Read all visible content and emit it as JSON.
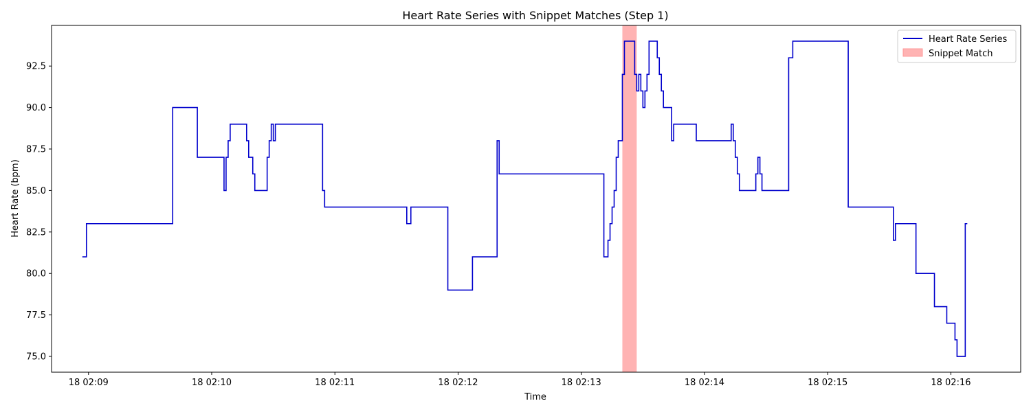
{
  "chart_data": {
    "type": "line",
    "title": "Heart Rate Series with Snippet Matches (Step 1)",
    "xlabel": "Time",
    "ylabel": "Heart Rate (bpm)",
    "xlim": [
      "02:08:42",
      "02:16:34"
    ],
    "ylim": [
      74.05,
      94.95
    ],
    "x_ticks": [
      {
        "t": "02:09:00",
        "label": "18 02:09"
      },
      {
        "t": "02:10:00",
        "label": "18 02:10"
      },
      {
        "t": "02:11:00",
        "label": "18 02:11"
      },
      {
        "t": "02:12:00",
        "label": "18 02:12"
      },
      {
        "t": "02:13:00",
        "label": "18 02:13"
      },
      {
        "t": "02:14:00",
        "label": "18 02:14"
      },
      {
        "t": "02:15:00",
        "label": "18 02:15"
      },
      {
        "t": "02:16:00",
        "label": "18 02:16"
      }
    ],
    "y_ticks": [
      {
        "v": 75.0,
        "label": "75.0"
      },
      {
        "v": 77.5,
        "label": "77.5"
      },
      {
        "v": 80.0,
        "label": "80.0"
      },
      {
        "v": 82.5,
        "label": "82.5"
      },
      {
        "v": 85.0,
        "label": "85.0"
      },
      {
        "v": 87.5,
        "label": "87.5"
      },
      {
        "v": 90.0,
        "label": "90.0"
      },
      {
        "v": 92.5,
        "label": "92.5"
      }
    ],
    "grid": false,
    "legend_position": "upper right",
    "series": [
      {
        "name": "Heart Rate Series",
        "color": "#0000cc",
        "step": "post",
        "points": [
          [
            "02:08:57",
            81
          ],
          [
            "02:08:59",
            83
          ],
          [
            "02:09:41",
            90
          ],
          [
            "02:09:53",
            87
          ],
          [
            "02:10:06",
            85
          ],
          [
            "02:10:07",
            87
          ],
          [
            "02:10:08",
            88
          ],
          [
            "02:10:09",
            89
          ],
          [
            "02:10:17",
            88
          ],
          [
            "02:10:18",
            87
          ],
          [
            "02:10:20",
            86
          ],
          [
            "02:10:21",
            85
          ],
          [
            "02:10:27",
            87
          ],
          [
            "02:10:28",
            88
          ],
          [
            "02:10:29",
            89
          ],
          [
            "02:10:30",
            88
          ],
          [
            "02:10:31",
            89
          ],
          [
            "02:10:54",
            85
          ],
          [
            "02:10:55",
            84
          ],
          [
            "02:11:35",
            83
          ],
          [
            "02:11:37",
            84
          ],
          [
            "02:11:55",
            79
          ],
          [
            "02:12:07",
            81
          ],
          [
            "02:12:19",
            88
          ],
          [
            "02:12:20",
            86
          ],
          [
            "02:13:11",
            81
          ],
          [
            "02:13:13",
            82
          ],
          [
            "02:13:14",
            83
          ],
          [
            "02:13:15",
            84
          ],
          [
            "02:13:16",
            85
          ],
          [
            "02:13:17",
            87
          ],
          [
            "02:13:18",
            88
          ],
          [
            "02:13:20",
            92
          ],
          [
            "02:13:21",
            94
          ],
          [
            "02:13:26",
            92
          ],
          [
            "02:13:27",
            91
          ],
          [
            "02:13:28",
            92
          ],
          [
            "02:13:29",
            91
          ],
          [
            "02:13:30",
            90
          ],
          [
            "02:13:31",
            91
          ],
          [
            "02:13:32",
            92
          ],
          [
            "02:13:33",
            94
          ],
          [
            "02:13:37",
            93
          ],
          [
            "02:13:38",
            92
          ],
          [
            "02:13:39",
            91
          ],
          [
            "02:13:40",
            90
          ],
          [
            "02:13:44",
            88
          ],
          [
            "02:13:45",
            89
          ],
          [
            "02:13:56",
            88
          ],
          [
            "02:14:13",
            89
          ],
          [
            "02:14:14",
            88
          ],
          [
            "02:14:15",
            87
          ],
          [
            "02:14:16",
            86
          ],
          [
            "02:14:17",
            85
          ],
          [
            "02:14:25",
            86
          ],
          [
            "02:14:26",
            87
          ],
          [
            "02:14:27",
            86
          ],
          [
            "02:14:28",
            85
          ],
          [
            "02:14:41",
            93
          ],
          [
            "02:14:43",
            94
          ],
          [
            "02:15:10",
            84
          ],
          [
            "02:15:32",
            82
          ],
          [
            "02:15:33",
            83
          ],
          [
            "02:15:43",
            80
          ],
          [
            "02:15:52",
            78
          ],
          [
            "02:15:58",
            77
          ],
          [
            "02:16:02",
            76
          ],
          [
            "02:16:03",
            75
          ],
          [
            "02:16:07",
            83
          ],
          [
            "02:16:08",
            83
          ]
        ]
      }
    ],
    "spans": [
      {
        "name": "Snippet Match",
        "color": "#ff9999",
        "alpha": 0.75,
        "x_start": "02:13:20",
        "x_end": "02:13:27"
      }
    ]
  }
}
